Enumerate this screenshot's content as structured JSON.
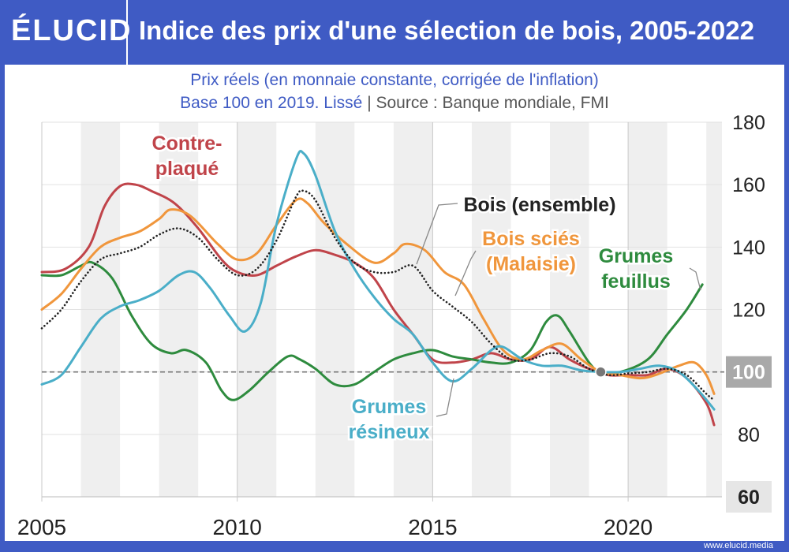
{
  "header": {
    "logo": "ÉLUCID",
    "title": "Indice des prix d'une sélection de bois, 2005-2022"
  },
  "subtitle": {
    "line1": "Prix réels (en monnaie constante, corrigée de l'inflation)",
    "line2_a": "Base 100 en 2019. Lissé",
    "line2_sep": "|",
    "line2_b": "Source : Banque mondiale, FMI"
  },
  "footer": {
    "site": "www.elucid.media"
  },
  "chart_data": {
    "type": "line",
    "xlim": [
      2005,
      2022.4
    ],
    "ylim": [
      60,
      180
    ],
    "x_ticks": [
      2005,
      2010,
      2015,
      2020
    ],
    "y_ticks": [
      60,
      80,
      100,
      120,
      140,
      160,
      180
    ],
    "reference_line": 100,
    "reference_point": {
      "x": 2019.3,
      "y": 100
    },
    "grid": "alternating vertical year bands",
    "series": [
      {
        "name": "Contre-plaqué",
        "color": "#c0444a",
        "style": "solid",
        "label_lines": [
          "Contre-",
          "plaqué"
        ],
        "points": [
          [
            2005,
            132
          ],
          [
            2005.6,
            133
          ],
          [
            2006.2,
            140
          ],
          [
            2006.6,
            153
          ],
          [
            2007,
            159.5
          ],
          [
            2007.4,
            160
          ],
          [
            2007.8,
            158
          ],
          [
            2008.4,
            154
          ],
          [
            2009,
            146
          ],
          [
            2009.6,
            136
          ],
          [
            2010,
            132
          ],
          [
            2010.5,
            131
          ],
          [
            2011,
            134
          ],
          [
            2011.5,
            137
          ],
          [
            2012,
            139
          ],
          [
            2012.5,
            137.5
          ],
          [
            2013,
            135
          ],
          [
            2013.5,
            130
          ],
          [
            2014,
            120
          ],
          [
            2014.5,
            112
          ],
          [
            2015,
            104
          ],
          [
            2015.5,
            103
          ],
          [
            2016,
            104
          ],
          [
            2016.5,
            106
          ],
          [
            2017,
            104
          ],
          [
            2017.5,
            104
          ],
          [
            2018,
            108
          ],
          [
            2018.5,
            104
          ],
          [
            2019,
            101
          ],
          [
            2019.5,
            99
          ],
          [
            2020,
            99
          ],
          [
            2020.5,
            99
          ],
          [
            2021,
            101
          ],
          [
            2021.5,
            98
          ],
          [
            2022,
            90
          ],
          [
            2022.2,
            83
          ]
        ]
      },
      {
        "name": "Bois (ensemble)",
        "color": "#222222",
        "style": "dotted",
        "label_lines": [
          "Bois (ensemble)"
        ],
        "points": [
          [
            2005,
            114
          ],
          [
            2005.5,
            120
          ],
          [
            2006,
            129
          ],
          [
            2006.5,
            136
          ],
          [
            2007,
            138
          ],
          [
            2007.5,
            140
          ],
          [
            2008,
            144
          ],
          [
            2008.5,
            146
          ],
          [
            2009,
            143
          ],
          [
            2009.5,
            136
          ],
          [
            2010,
            131
          ],
          [
            2010.5,
            133
          ],
          [
            2011,
            142
          ],
          [
            2011.5,
            156
          ],
          [
            2011.7,
            158
          ],
          [
            2012,
            155
          ],
          [
            2012.5,
            143
          ],
          [
            2013,
            135
          ],
          [
            2013.5,
            132
          ],
          [
            2014,
            132
          ],
          [
            2014.5,
            134
          ],
          [
            2015,
            126
          ],
          [
            2015.5,
            121
          ],
          [
            2016,
            116
          ],
          [
            2016.5,
            109
          ],
          [
            2017,
            104
          ],
          [
            2017.5,
            104
          ],
          [
            2018,
            106
          ],
          [
            2018.5,
            105
          ],
          [
            2019,
            101
          ],
          [
            2019.5,
            99
          ],
          [
            2020,
            99.5
          ],
          [
            2020.5,
            100
          ],
          [
            2021,
            101
          ],
          [
            2021.5,
            99
          ],
          [
            2022,
            93
          ],
          [
            2022.2,
            91
          ]
        ]
      },
      {
        "name": "Bois sciés (Malaisie)",
        "color": "#f0963c",
        "style": "solid",
        "label_lines": [
          "Bois sciés",
          "(Malaisie)"
        ],
        "points": [
          [
            2005,
            120
          ],
          [
            2005.5,
            125
          ],
          [
            2006,
            133
          ],
          [
            2006.5,
            140
          ],
          [
            2007,
            143
          ],
          [
            2007.5,
            145
          ],
          [
            2008,
            149
          ],
          [
            2008.3,
            152
          ],
          [
            2008.8,
            150
          ],
          [
            2009.5,
            141
          ],
          [
            2010,
            136
          ],
          [
            2010.5,
            138
          ],
          [
            2011,
            147
          ],
          [
            2011.5,
            155
          ],
          [
            2011.8,
            154
          ],
          [
            2012.2,
            148
          ],
          [
            2012.8,
            141
          ],
          [
            2013.5,
            135
          ],
          [
            2014,
            138
          ],
          [
            2014.3,
            141
          ],
          [
            2014.8,
            139
          ],
          [
            2015.3,
            132
          ],
          [
            2015.8,
            128
          ],
          [
            2016.3,
            117
          ],
          [
            2016.8,
            107
          ],
          [
            2017.3,
            104
          ],
          [
            2017.8,
            107
          ],
          [
            2018.3,
            109
          ],
          [
            2018.8,
            104
          ],
          [
            2019.3,
            100
          ],
          [
            2019.8,
            99
          ],
          [
            2020.3,
            98
          ],
          [
            2020.7,
            99
          ],
          [
            2021.3,
            102
          ],
          [
            2021.7,
            103
          ],
          [
            2022,
            99
          ],
          [
            2022.2,
            93
          ]
        ]
      },
      {
        "name": "Grumes feuillus",
        "color": "#2e8b3e",
        "style": "solid",
        "label_lines": [
          "Grumes",
          "feuillus"
        ],
        "points": [
          [
            2005,
            131
          ],
          [
            2005.5,
            131
          ],
          [
            2006,
            134
          ],
          [
            2006.3,
            135
          ],
          [
            2006.8,
            130
          ],
          [
            2007.3,
            118
          ],
          [
            2007.8,
            109
          ],
          [
            2008.3,
            106
          ],
          [
            2008.7,
            107
          ],
          [
            2009.2,
            103
          ],
          [
            2009.6,
            94
          ],
          [
            2009.9,
            91
          ],
          [
            2010.3,
            94
          ],
          [
            2010.8,
            100
          ],
          [
            2011.3,
            105
          ],
          [
            2011.6,
            104
          ],
          [
            2012,
            101
          ],
          [
            2012.5,
            96
          ],
          [
            2013,
            96
          ],
          [
            2013.5,
            100
          ],
          [
            2014,
            104
          ],
          [
            2014.5,
            106
          ],
          [
            2015,
            107
          ],
          [
            2015.5,
            105
          ],
          [
            2016,
            104
          ],
          [
            2016.5,
            103
          ],
          [
            2017,
            103
          ],
          [
            2017.5,
            107
          ],
          [
            2017.9,
            116
          ],
          [
            2018.2,
            118
          ],
          [
            2018.5,
            113
          ],
          [
            2019,
            103
          ],
          [
            2019.3,
            100
          ],
          [
            2019.8,
            100
          ],
          [
            2020.5,
            104
          ],
          [
            2021,
            112
          ],
          [
            2021.5,
            120
          ],
          [
            2021.9,
            128
          ]
        ]
      },
      {
        "name": "Grumes résineux",
        "color": "#4aaec8",
        "style": "solid",
        "label_lines": [
          "Grumes",
          "résineux"
        ],
        "points": [
          [
            2005,
            96
          ],
          [
            2005.5,
            99
          ],
          [
            2006,
            108
          ],
          [
            2006.5,
            117
          ],
          [
            2007,
            121
          ],
          [
            2007.5,
            123
          ],
          [
            2008,
            126
          ],
          [
            2008.5,
            131
          ],
          [
            2008.9,
            132
          ],
          [
            2009.3,
            127
          ],
          [
            2009.8,
            118
          ],
          [
            2010.2,
            113
          ],
          [
            2010.6,
            122
          ],
          [
            2011,
            147
          ],
          [
            2011.5,
            168
          ],
          [
            2011.7,
            170
          ],
          [
            2012,
            163
          ],
          [
            2012.5,
            145
          ],
          [
            2013,
            133
          ],
          [
            2013.5,
            124
          ],
          [
            2014,
            117
          ],
          [
            2014.5,
            112
          ],
          [
            2015,
            103
          ],
          [
            2015.5,
            97
          ],
          [
            2016,
            101
          ],
          [
            2016.5,
            107
          ],
          [
            2016.8,
            108
          ],
          [
            2017.3,
            104
          ],
          [
            2017.8,
            102
          ],
          [
            2018.3,
            102
          ],
          [
            2018.8,
            100.5
          ],
          [
            2019.3,
            100
          ],
          [
            2019.8,
            100
          ],
          [
            2020.3,
            101
          ],
          [
            2020.8,
            102
          ],
          [
            2021.3,
            100
          ],
          [
            2021.8,
            94
          ],
          [
            2022.2,
            88
          ]
        ]
      }
    ]
  }
}
